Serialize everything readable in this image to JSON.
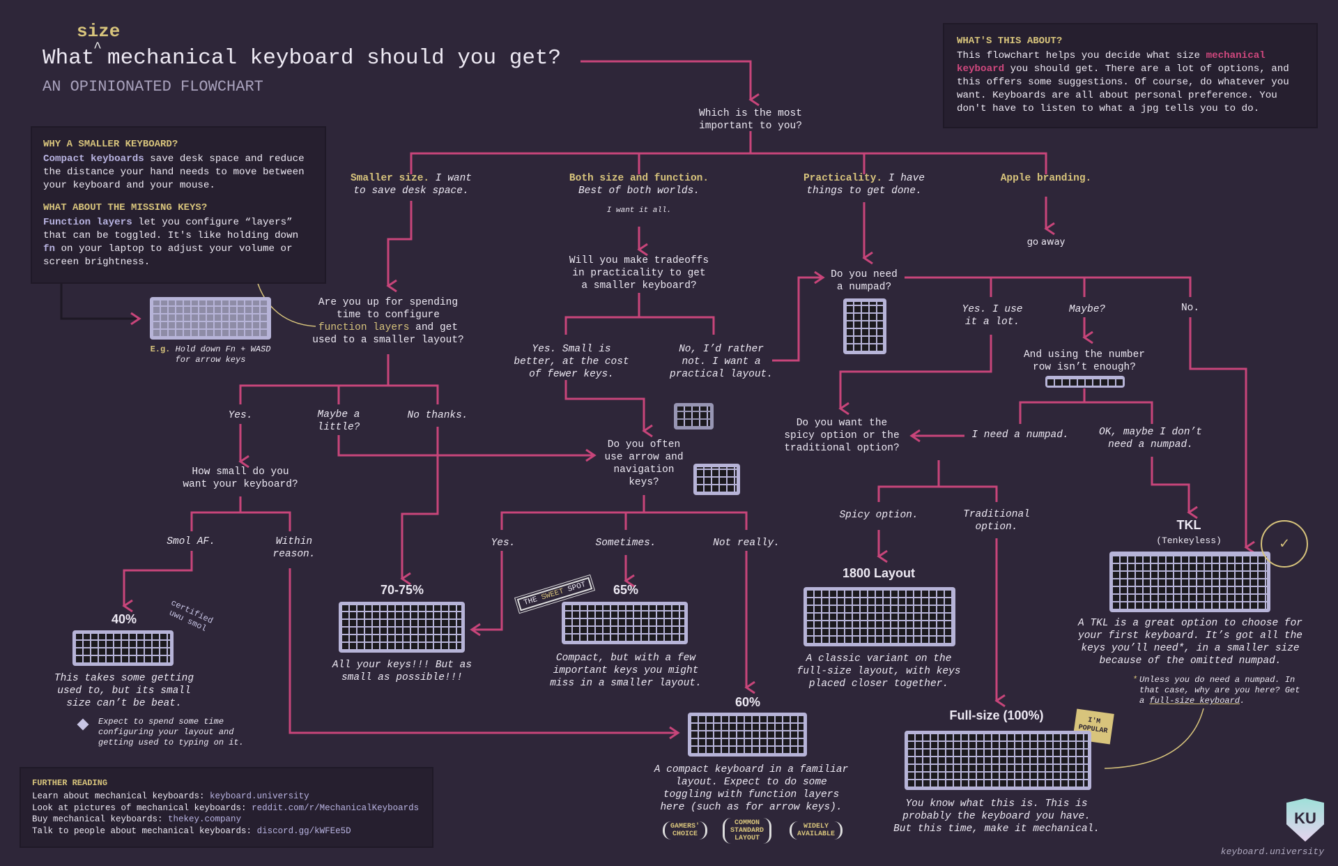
{
  "title": {
    "pre": "What",
    "insert": "size",
    "post": "mechanical keyboard should you get?",
    "subtitle": "AN OPINIONATED FLOWCHART"
  },
  "about": {
    "heading": "WHAT'S THIS ABOUT?",
    "t1": "This flowchart helps you decide what size ",
    "hl": "mechanical keyboard",
    "t2": " you should get. There are a lot of options, and this offers some suggestions. Of course, do whatever you want. Keyboards are all about personal preference. You don't have to listen to what a jpg tells you to do."
  },
  "why": {
    "h1": "WHY A SMALLER KEYBOARD?",
    "hl1": "Compact keyboards",
    "t1": " save desk space and reduce the distance your hand needs to move between your keyboard and your mouse.",
    "h2": "WHAT ABOUT THE MISSING KEYS?",
    "hl2": "Function layers",
    "t2": " let you configure “layers” that can be toggled. It's like holding down ",
    "hl3": "fn",
    "t3": " on your laptop to adjust your volume or screen brightness.",
    "eg": "E.g.",
    "eg_text": "Hold down Fn + WASD",
    "eg_text2": "for arrow keys"
  },
  "nodes": {
    "start": [
      "Which is the most",
      "important to you?"
    ],
    "opt_small": {
      "b": "Smaller size.",
      "t": " I want",
      "t2": "to save desk space."
    },
    "opt_both": {
      "b": "Both size and function.",
      "t2": "Best of both worlds.",
      "small": "I want it all."
    },
    "opt_prac": {
      "b": "Practicality.",
      "t": " I have",
      "t2": "things to get done."
    },
    "opt_apple": {
      "b": "Apple branding."
    },
    "go_away": "go away",
    "fnq": {
      "l1": "Are you up for spending",
      "l2": "time to configure",
      "hl": "function layers",
      "l3": " and get",
      "l4": "used to a smaller layout?"
    },
    "tradeoffs": [
      "Will you make tradeoffs",
      "in practicality to get",
      "a smaller keyboard?"
    ],
    "yes_small": [
      "Yes. Small is",
      "better, at the cost",
      "of fewer keys."
    ],
    "no_rather": [
      "No, I’d rather",
      "not. I want a",
      "practical layout."
    ],
    "numpad": [
      "Do you need",
      "a numpad?"
    ],
    "np_yes": [
      "Yes. I use",
      "it a lot."
    ],
    "np_maybe": "Maybe?",
    "np_no": "No.",
    "numrow": [
      "And using the number",
      "row isn’t enough?"
    ],
    "need_np": "I need a numpad.",
    "ok_maybe": [
      "OK, maybe I don’t",
      "need a numpad."
    ],
    "spicy_q": [
      "Do you want the",
      "spicy option or the",
      "traditional option?"
    ],
    "spicy": "Spicy option.",
    "trad": [
      "Traditional",
      "option."
    ],
    "fn_yes": "Yes.",
    "fn_maybe": [
      "Maybe a",
      "little?"
    ],
    "fn_no": "No thanks.",
    "howsmall": [
      "How small do you",
      "want your keyboard?"
    ],
    "smol": "Smol AF.",
    "within": [
      "Within",
      "reason."
    ],
    "arrows": [
      "Do you often",
      "use arrow and",
      "navigation",
      "keys?"
    ],
    "ar_yes": "Yes.",
    "ar_some": "Sometimes.",
    "ar_not": "Not really."
  },
  "results": {
    "p40": {
      "title": "40%",
      "caption": [
        "This takes some getting",
        "used to, but its small",
        "size can’t be beat."
      ],
      "note": [
        "Expect to spend some time",
        "configuring your layout and",
        "getting used to typing on it."
      ],
      "sticker": [
        "certified",
        "uwu smol"
      ]
    },
    "p70": {
      "title": "70-75%",
      "caption": [
        "All your keys!!! But as",
        "small as possible!!!"
      ]
    },
    "p65": {
      "title": "65%",
      "caption": [
        "Compact, but with a few",
        "important keys you might",
        "miss in a smaller layout."
      ],
      "stamp_pre": "THE ",
      "stamp_hl": "SWEET",
      "stamp_post": " SPOT"
    },
    "p60": {
      "title": "60%",
      "caption": [
        "A compact keyboard in a familiar",
        "layout. Expect to do some",
        "toggling with function layers",
        "here (such as for arrow keys)."
      ],
      "badges": [
        [
          "GAMERS'",
          "CHOICE"
        ],
        [
          "COMMON",
          "STANDARD",
          "LAYOUT"
        ],
        [
          "WIDELY",
          "AVAILABLE"
        ]
      ]
    },
    "p1800": {
      "title": "1800 Layout",
      "caption": [
        "A classic variant on the",
        "full-size layout, with keys",
        "placed closer together."
      ]
    },
    "tkl": {
      "title": "TKL",
      "sub": "(Tenkeyless)",
      "caption": [
        "A TKL is a great option to choose for",
        "your first keyboard. It’s got all the",
        "keys you’ll need*, in a smaller size",
        "because of the omitted numpad."
      ],
      "foot1": "Unless you do need a numpad. In",
      "foot2": "that case, why are you here? Get",
      "foot3a": "a ",
      "foot3b": "full-size keyboard",
      "foot3c": ".",
      "stamp": "GUARANTEED SAFE OPTION"
    },
    "full": {
      "title": "Full-size (100%)",
      "caption": [
        "You know what this is. This is",
        "probably the keyboard you have.",
        "But this time, make it mechanical."
      ],
      "sticky": [
        "I'M",
        "POPULAR"
      ]
    }
  },
  "further": {
    "heading": "FURTHER READING",
    "items": [
      {
        "label": "Learn about mechanical keyboards: ",
        "link": "keyboard.university"
      },
      {
        "label": "Look at pictures of mechanical keyboards: ",
        "link": "reddit.com/r/MechanicalKeyboards"
      },
      {
        "label": "Buy mechanical keyboards: ",
        "link": "thekey.company"
      },
      {
        "label": "Talk to people about mechanical keyboards: ",
        "link": "discord.gg/kWFEe5D"
      }
    ]
  },
  "footer": {
    "site": "keyboard.university",
    "logo": "KU"
  },
  "colors": {
    "background": "#2e2639",
    "line": "#c8457a",
    "accent_gold": "#d8c47c",
    "accent_lavender": "#b9b4e2"
  }
}
